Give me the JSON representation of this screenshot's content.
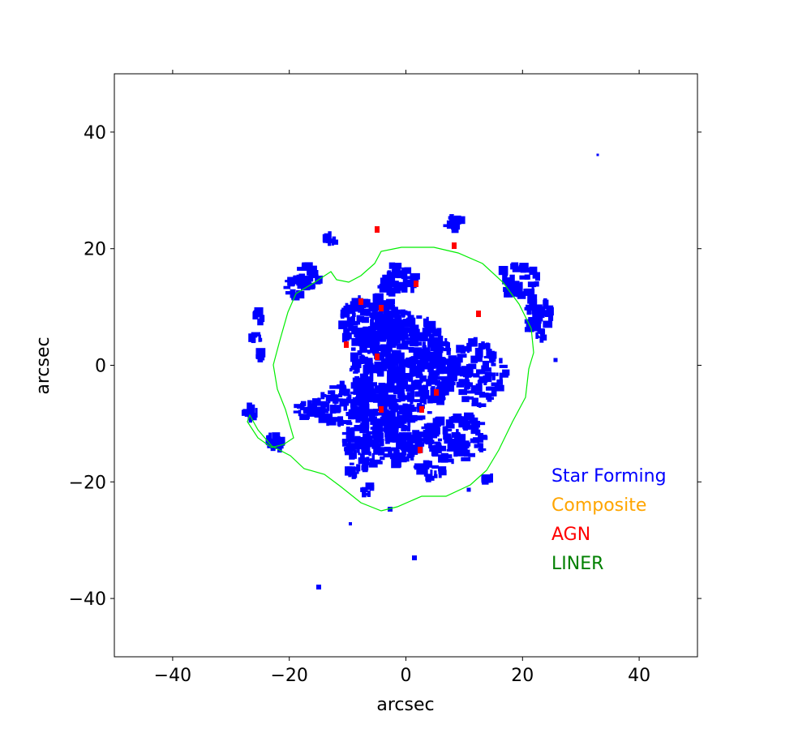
{
  "chart_data": {
    "type": "map",
    "xlabel": "arcsec",
    "ylabel": "arcsec",
    "xlim": [
      -50,
      50
    ],
    "ylim": [
      -50,
      50
    ],
    "xticks": [
      {
        "value": -40,
        "label": "−40"
      },
      {
        "value": -20,
        "label": "−20"
      },
      0,
      20,
      40
    ],
    "yticks": [
      {
        "value": -40,
        "label": "−40"
      },
      {
        "value": -20,
        "label": "−20"
      },
      0,
      20,
      40
    ],
    "legend": [
      {
        "label": "Star Forming",
        "color": "#0000ff"
      },
      {
        "label": "Composite",
        "color": "#ffa500"
      },
      {
        "label": "AGN",
        "color": "#ff0000"
      },
      {
        "label": "LINER",
        "color": "#008000"
      }
    ]
  }
}
